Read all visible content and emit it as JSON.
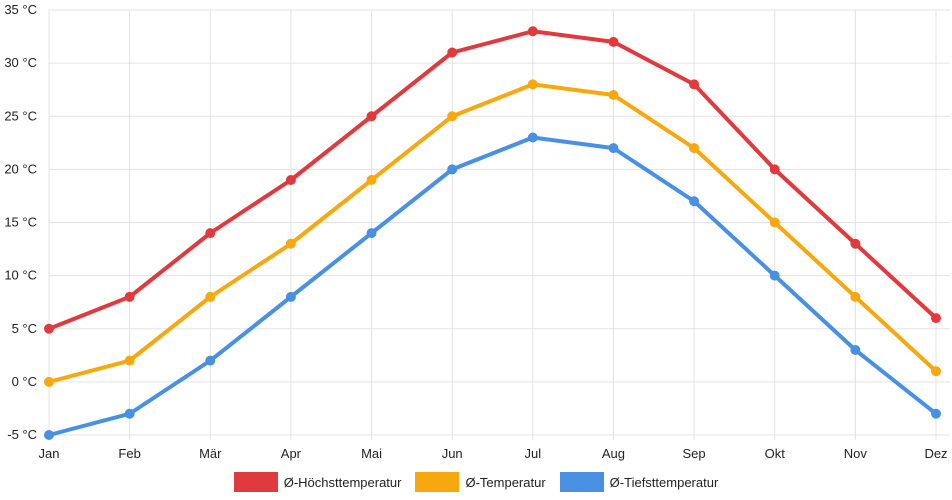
{
  "chart_data": {
    "type": "line",
    "categories": [
      "Jan",
      "Feb",
      "Mär",
      "Apr",
      "Mai",
      "Jun",
      "Jul",
      "Aug",
      "Sep",
      "Okt",
      "Nov",
      "Dez"
    ],
    "ylim": [
      -5,
      35
    ],
    "yticks": [
      {
        "value": 35,
        "label": "35 °C"
      },
      {
        "value": 30,
        "label": "30 °C"
      },
      {
        "value": 25,
        "label": "25 °C"
      },
      {
        "value": 20,
        "label": "20 °C"
      },
      {
        "value": 15,
        "label": "15 °C"
      },
      {
        "value": 10,
        "label": "10 °C"
      },
      {
        "value": 5,
        "label": "5 °C"
      },
      {
        "value": 0,
        "label": "0 °C"
      },
      {
        "value": -5,
        "label": "-5 °C"
      }
    ],
    "grid": true,
    "legend_position": "bottom-center",
    "series": [
      {
        "name": "Ø-Höchsttemperatur",
        "color": "#e0393e",
        "values": [
          5,
          8,
          14,
          19,
          25,
          31,
          33,
          32,
          28,
          20,
          13,
          6
        ]
      },
      {
        "name": "Ø-Temperatur",
        "color": "#f8a80f",
        "values": [
          0,
          2,
          8,
          13,
          19,
          25,
          28,
          27,
          22,
          15,
          8,
          1
        ]
      },
      {
        "name": "Ø-Tiefsttemperatur",
        "color": "#4a90e2",
        "values": [
          -5,
          -3,
          2,
          8,
          14,
          20,
          23,
          22,
          17,
          10,
          3,
          -3
        ]
      }
    ]
  }
}
